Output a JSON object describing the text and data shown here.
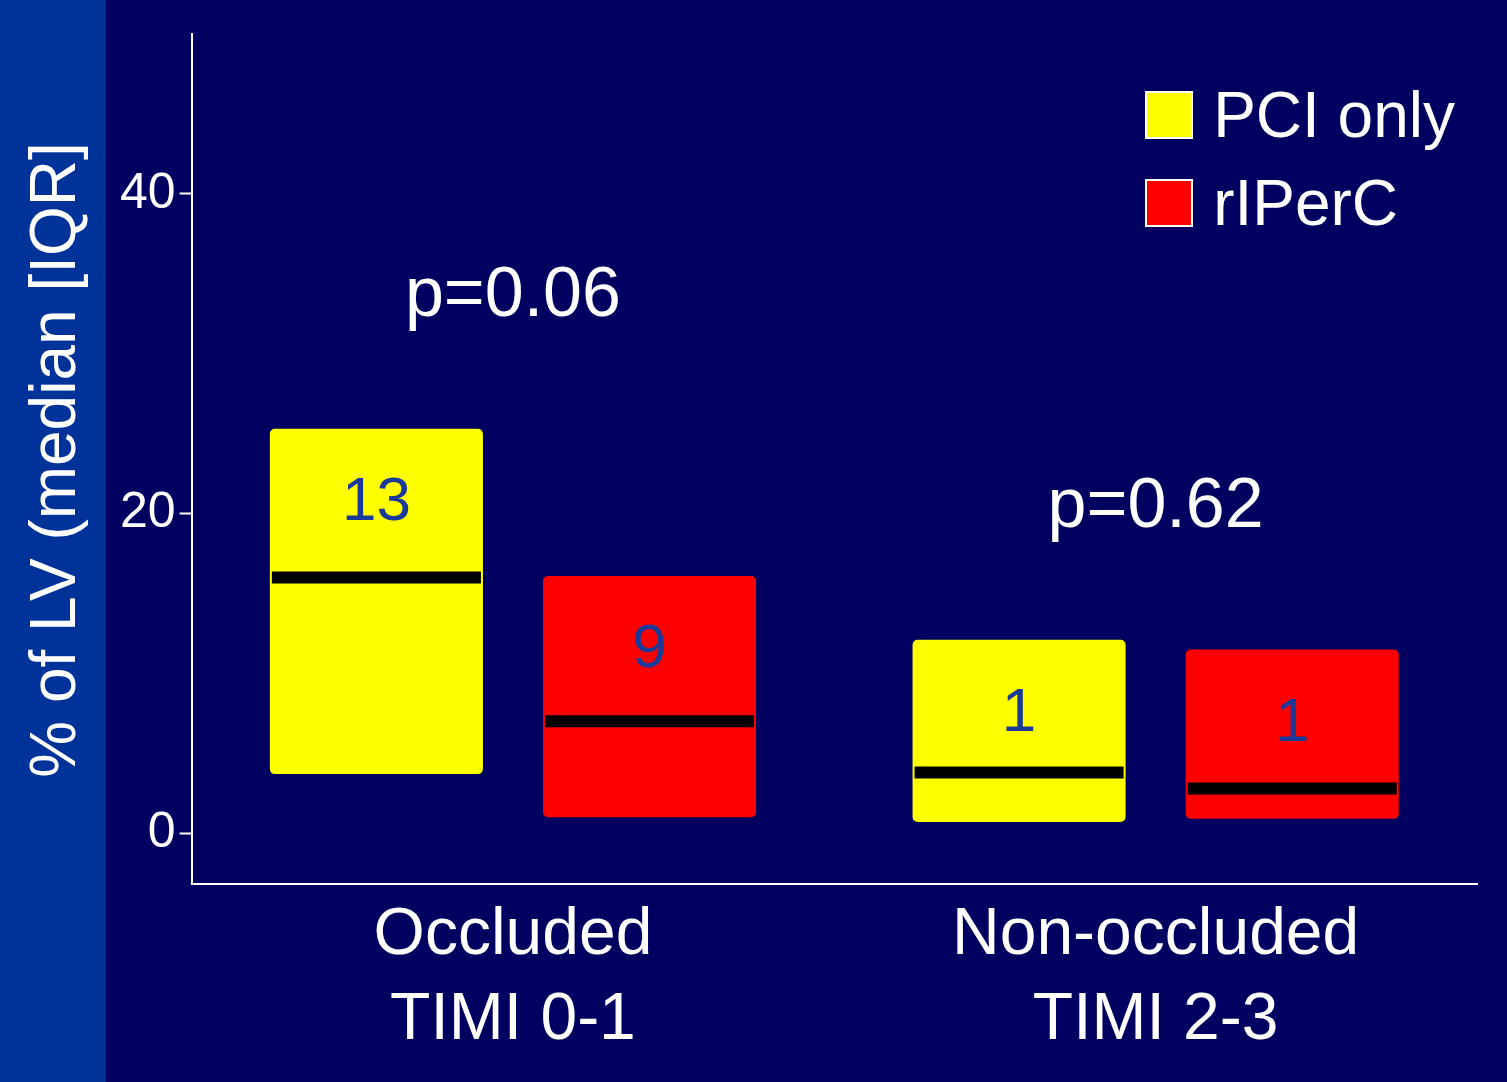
{
  "chart_data": {
    "type": "box",
    "ylabel": "% of LV (median [IQR]",
    "categories": [
      "Occluded\nTIMI 0-1",
      "Non-occluded\nTIMI 2-3"
    ],
    "series": [
      {
        "name": "PCI only",
        "color": "#ffff00",
        "boxes": [
          {
            "low": 3.7,
            "q1": 3.7,
            "median": 16.0,
            "q3": 25.3,
            "high": 25.3
          },
          {
            "low": 0.7,
            "q1": 0.7,
            "median": 3.8,
            "q3": 12.1,
            "high": 12.1
          }
        ],
        "value_labels": [
          "13",
          "1"
        ]
      },
      {
        "name": "rIPerC",
        "color": "#ff0000",
        "boxes": [
          {
            "low": 1.0,
            "q1": 1.0,
            "median": 7.0,
            "q3": 16.1,
            "high": 16.1
          },
          {
            "low": 0.9,
            "q1": 0.9,
            "median": 2.8,
            "q3": 11.5,
            "high": 11.5
          }
        ],
        "value_labels": [
          "9",
          "1"
        ]
      }
    ],
    "annotations": [
      "p=0.06",
      "p=0.62"
    ],
    "ylim": [
      -3.2,
      50
    ],
    "yticks": [
      0,
      20,
      40
    ],
    "grid": false,
    "legend": "top right"
  }
}
